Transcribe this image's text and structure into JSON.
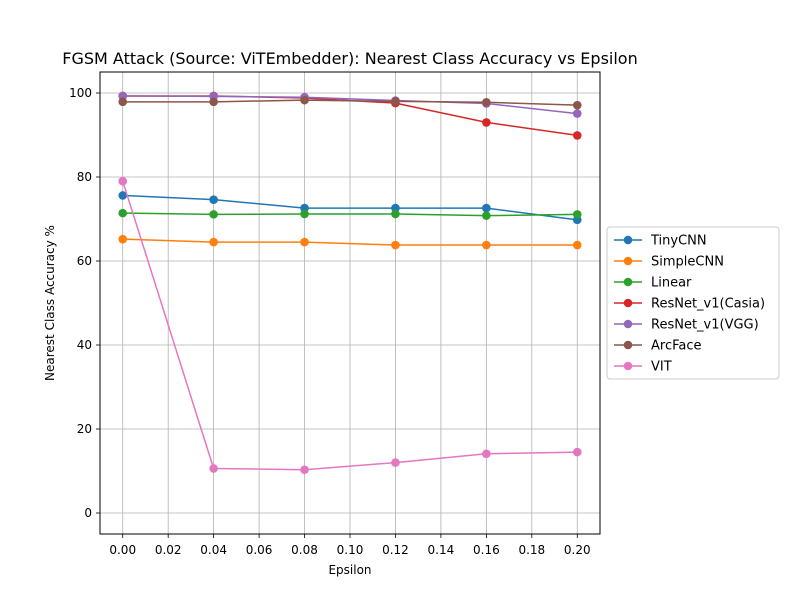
{
  "chart_data": {
    "type": "line",
    "title": "FGSM Attack (Source: ViTEmbedder): Nearest Class Accuracy vs Epsilon",
    "xlabel": "Epsilon",
    "ylabel": "Nearest Class Accuracy %",
    "x": [
      0.0,
      0.04,
      0.08,
      0.12,
      0.16,
      0.2
    ],
    "xlim": [
      -0.01,
      0.21
    ],
    "ylim": [
      -5,
      105
    ],
    "xticks": [
      0.0,
      0.02,
      0.04,
      0.06,
      0.08,
      0.1,
      0.12,
      0.14,
      0.16,
      0.18,
      0.2
    ],
    "xtick_labels": [
      "0.00",
      "0.02",
      "0.04",
      "0.06",
      "0.08",
      "0.10",
      "0.12",
      "0.14",
      "0.16",
      "0.18",
      "0.20"
    ],
    "yticks": [
      0,
      20,
      40,
      60,
      80,
      100
    ],
    "ytick_labels": [
      "0",
      "20",
      "40",
      "60",
      "80",
      "100"
    ],
    "grid": true,
    "legend_position": "right",
    "series": [
      {
        "name": "TinyCNN",
        "color": "#1f77b4",
        "values": [
          75.6,
          74.6,
          72.6,
          72.6,
          72.6,
          69.8
        ]
      },
      {
        "name": "SimpleCNN",
        "color": "#ff7f0e",
        "values": [
          65.2,
          64.5,
          64.5,
          63.8,
          63.8,
          63.8
        ]
      },
      {
        "name": "Linear",
        "color": "#2ca02c",
        "values": [
          71.4,
          71.1,
          71.2,
          71.2,
          70.8,
          71.1
        ]
      },
      {
        "name": "ResNet_v1(Casia)",
        "color": "#d62728",
        "values": [
          99.3,
          99.3,
          98.8,
          97.6,
          93.0,
          89.9
        ]
      },
      {
        "name": "ResNet_v1(VGG)",
        "color": "#9467bd",
        "values": [
          99.3,
          99.2,
          99.0,
          98.2,
          97.5,
          95.1
        ]
      },
      {
        "name": "ArcFace",
        "color": "#8c564b",
        "values": [
          97.9,
          97.9,
          98.3,
          98.0,
          97.8,
          97.1
        ]
      },
      {
        "name": "VIT",
        "color": "#e377c2",
        "values": [
          79.0,
          10.6,
          10.3,
          12.0,
          14.1,
          14.5
        ]
      }
    ]
  }
}
